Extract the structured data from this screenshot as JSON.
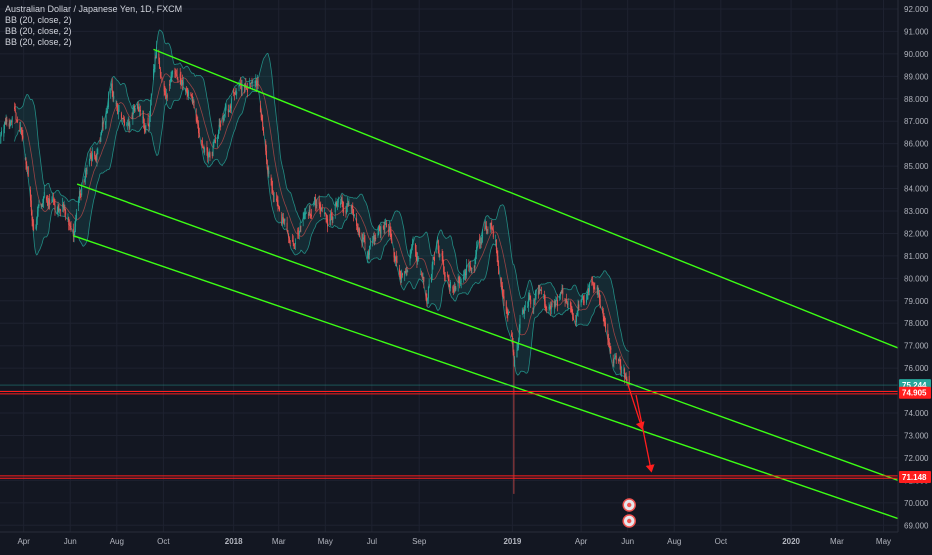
{
  "header": {
    "symbol_title": "Australian Dollar / Japanese Yen, 1D, FXCM",
    "indicators": [
      "BB (20, close, 2)",
      "BB (20, close, 2)",
      "BB (20, close, 2)"
    ]
  },
  "colors": {
    "background": "#131722",
    "grid": "#1e2230",
    "up_candle": "#26a69a",
    "down_candle": "#ef5350",
    "band_line": "#26a69a",
    "band_fill": "rgba(38,166,154,0.14)",
    "basis_line": "#ef5350",
    "channel_line": "#3cff14",
    "level_line": "#ff1e1e",
    "current_price": "#26a69a",
    "axis_text": "#b2b5be"
  },
  "chart_data": {
    "type": "candlestick",
    "title": "Australian Dollar / Japanese Yen, 1D, FXCM",
    "x_axis": {
      "type": "time",
      "tick_labels": [
        "Apr",
        "Jun",
        "Aug",
        "Oct",
        "2018",
        "Mar",
        "May",
        "Jul",
        "Sep",
        "2019",
        "Apr",
        "Jun",
        "Aug",
        "Oct",
        "2020",
        "Mar",
        "May"
      ],
      "tick_dates": [
        "2017-04-01",
        "2017-06-01",
        "2017-08-01",
        "2017-10-01",
        "2018-01-01",
        "2018-03-01",
        "2018-05-01",
        "2018-07-01",
        "2018-09-01",
        "2019-01-01",
        "2019-04-01",
        "2019-06-01",
        "2019-08-01",
        "2019-10-01",
        "2020-01-01",
        "2020-03-01",
        "2020-05-01"
      ],
      "range": [
        "2017-03-01",
        "2020-05-20"
      ]
    },
    "y_axis": {
      "position": "right",
      "range": [
        68.7,
        92.4
      ],
      "tick_labels": [
        "69.000",
        "70.000",
        "71.000",
        "72.000",
        "73.000",
        "74.000",
        "75.000",
        "76.000",
        "77.000",
        "78.000",
        "79.000",
        "80.000",
        "81.000",
        "82.000",
        "83.000",
        "84.000",
        "85.000",
        "86.000",
        "87.000",
        "88.000",
        "89.000",
        "90.000",
        "91.000",
        "92.000"
      ],
      "tick_values": [
        69,
        70,
        71,
        72,
        73,
        74,
        75,
        76,
        77,
        78,
        79,
        80,
        81,
        82,
        83,
        84,
        85,
        86,
        87,
        88,
        89,
        90,
        91,
        92
      ]
    },
    "price_path": [
      [
        "2017-03-01",
        86.2
      ],
      [
        "2017-03-20",
        87.6
      ],
      [
        "2017-04-05",
        85.2
      ],
      [
        "2017-04-15",
        82.2
      ],
      [
        "2017-05-01",
        83.8
      ],
      [
        "2017-05-20",
        83.2
      ],
      [
        "2017-06-05",
        82.2
      ],
      [
        "2017-06-20",
        84.6
      ],
      [
        "2017-07-10",
        86.0
      ],
      [
        "2017-07-25",
        88.6
      ],
      [
        "2017-08-10",
        86.6
      ],
      [
        "2017-08-28",
        87.6
      ],
      [
        "2017-09-12",
        86.8
      ],
      [
        "2017-09-22",
        90.0
      ],
      [
        "2017-10-05",
        88.3
      ],
      [
        "2017-10-20",
        89.0
      ],
      [
        "2017-11-01",
        88.4
      ],
      [
        "2017-11-15",
        86.9
      ],
      [
        "2017-12-01",
        85.2
      ],
      [
        "2017-12-15",
        86.9
      ],
      [
        "2018-01-05",
        88.7
      ],
      [
        "2018-01-20",
        88.3
      ],
      [
        "2018-02-01",
        88.7
      ],
      [
        "2018-02-15",
        84.8
      ],
      [
        "2018-03-05",
        82.7
      ],
      [
        "2018-03-20",
        81.9
      ],
      [
        "2018-04-05",
        82.5
      ],
      [
        "2018-04-20",
        83.2
      ],
      [
        "2018-05-05",
        82.4
      ],
      [
        "2018-05-20",
        83.5
      ],
      [
        "2018-06-05",
        82.9
      ],
      [
        "2018-06-25",
        81.1
      ],
      [
        "2018-07-10",
        82.5
      ],
      [
        "2018-07-25",
        82.1
      ],
      [
        "2018-08-10",
        80.3
      ],
      [
        "2018-08-25",
        81.6
      ],
      [
        "2018-09-10",
        79.3
      ],
      [
        "2018-09-25",
        81.5
      ],
      [
        "2018-10-10",
        79.6
      ],
      [
        "2018-10-25",
        80.2
      ],
      [
        "2018-11-10",
        81.1
      ],
      [
        "2018-11-20",
        82.0
      ],
      [
        "2018-12-05",
        82.7
      ],
      [
        "2018-12-20",
        79.5
      ],
      [
        "2018-12-31",
        77.6
      ],
      [
        "2019-01-03",
        76.0
      ],
      [
        "2019-01-15",
        78.8
      ],
      [
        "2019-02-01",
        79.4
      ],
      [
        "2019-02-20",
        78.6
      ],
      [
        "2019-03-10",
        79.3
      ],
      [
        "2019-03-25",
        78.3
      ],
      [
        "2019-04-15",
        80.0
      ],
      [
        "2019-04-25",
        79.2
      ],
      [
        "2019-05-10",
        76.6
      ],
      [
        "2019-05-25",
        75.6
      ],
      [
        "2019-06-03",
        75.24
      ]
    ],
    "notable_points": {
      "high": {
        "date": "2017-09-20",
        "value": 90.2
      },
      "flash_crash_low": {
        "date": "2019-01-03",
        "value": 70.4
      }
    },
    "bollinger_bands": {
      "period": 20,
      "source": "close",
      "stddev": 2
    },
    "trend_lines": [
      {
        "name": "upper-channel",
        "points": [
          [
            "2017-09-18",
            90.2
          ],
          [
            "2020-05-20",
            76.9
          ]
        ]
      },
      {
        "name": "middle-channel",
        "points": [
          [
            "2017-06-10",
            84.2
          ],
          [
            "2020-05-20",
            71.0
          ]
        ]
      },
      {
        "name": "lower-channel",
        "points": [
          [
            "2017-06-05",
            81.9
          ],
          [
            "2020-05-20",
            69.3
          ]
        ]
      }
    ],
    "horizontal_levels": [
      {
        "value": 74.905,
        "label": "74.905"
      },
      {
        "value": 71.148,
        "label": "71.148"
      }
    ],
    "current_price": {
      "value": 75.244,
      "label": "75.244"
    },
    "projection_arrows": [
      {
        "from": [
          "2019-06-01",
          75.3
        ],
        "to": [
          "2019-06-20",
          73.3
        ]
      },
      {
        "from": [
          "2019-06-12",
          74.8
        ],
        "to": [
          "2019-07-02",
          71.4
        ]
      }
    ],
    "grid": true,
    "legend": "top-left"
  }
}
